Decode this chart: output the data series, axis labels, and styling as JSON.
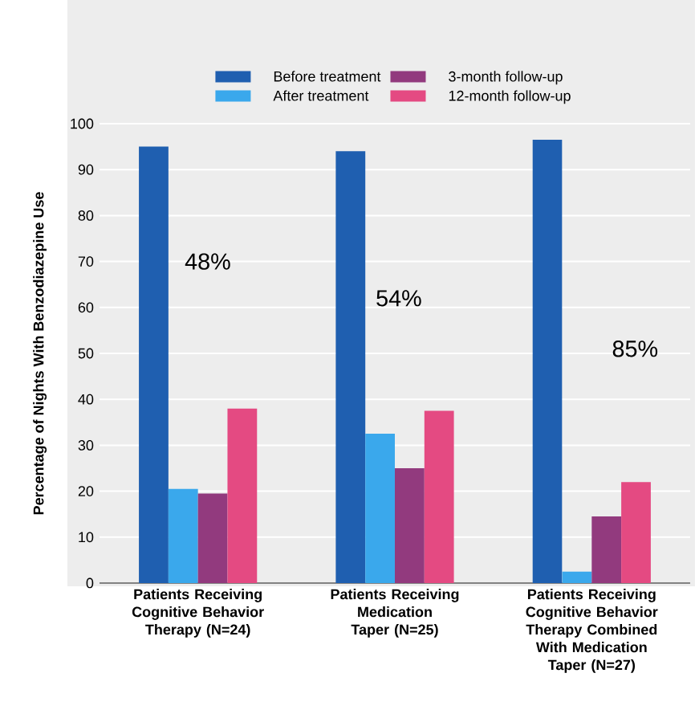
{
  "chart_data": {
    "type": "bar",
    "ylabel": "Percentage of Nights With Benzodiazepine Use",
    "categories": [
      "Patients Receiving Cognitive Behavior Therapy (N=24)",
      "Patients Receiving Medication Taper (N=25)",
      "Patients Receiving Cognitive Behavior Therapy Combined With Medication Taper (N=27)"
    ],
    "series": [
      {
        "name": "Before treatment",
        "color": "#1f5fb0",
        "values": [
          95,
          94,
          96.5
        ]
      },
      {
        "name": "After treatment",
        "color": "#3aa8ec",
        "values": [
          20.5,
          32.5,
          2.5
        ]
      },
      {
        "name": "3-month follow-up",
        "color": "#923a7e",
        "values": [
          19.5,
          25,
          14.5
        ]
      },
      {
        "name": "12-month follow-up",
        "color": "#e44a82",
        "values": [
          38,
          37.5,
          22
        ]
      }
    ],
    "ylim": [
      0,
      100
    ],
    "yticks": [
      0,
      10,
      20,
      30,
      40,
      50,
      60,
      70,
      80,
      90,
      100
    ],
    "grid": "y",
    "legend": "top",
    "annotations": [
      "48%",
      "54%",
      "85%"
    ]
  }
}
